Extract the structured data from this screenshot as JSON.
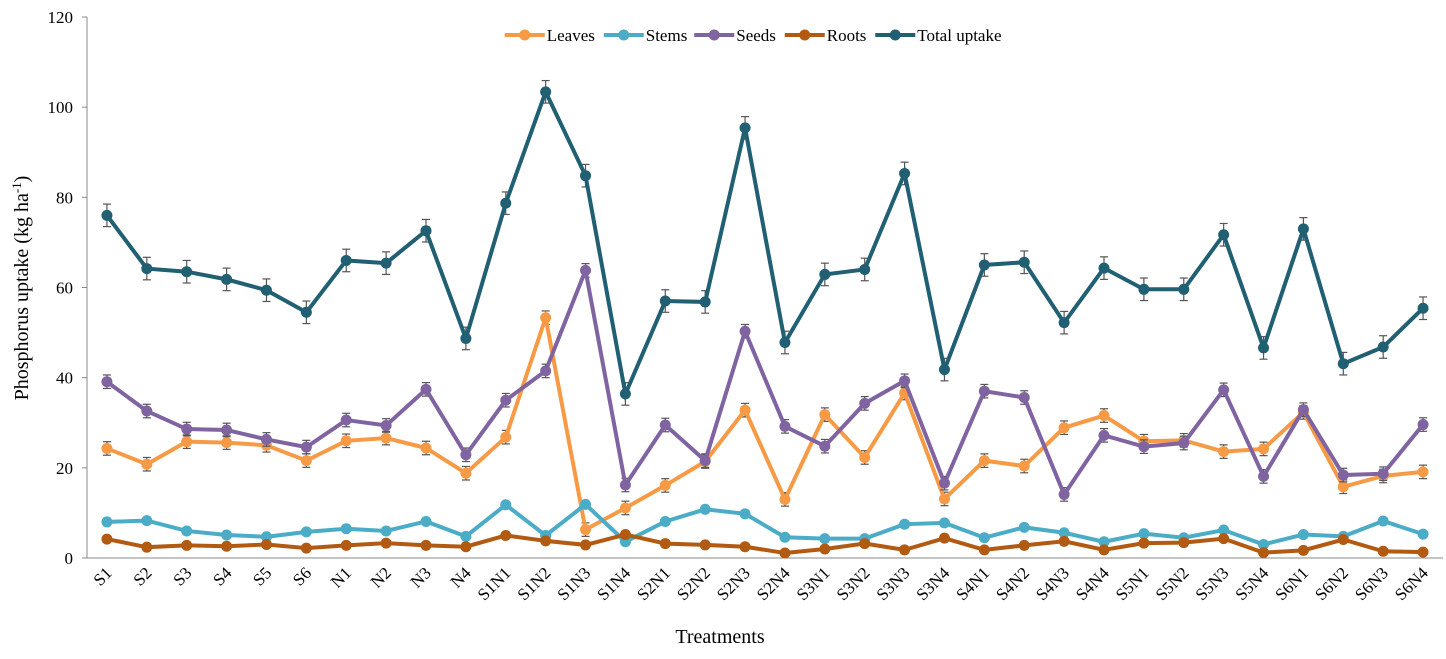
{
  "chart_data": {
    "type": "line",
    "xlabel": "Treatments",
    "ylabel": "Phosphorus uptake (kg ha",
    "ylabel_sup": "-1",
    "ylabel_end": ")",
    "categories": [
      "S1",
      "S2",
      "S3",
      "S4",
      "S5",
      "S6",
      "N1",
      "N2",
      "N3",
      "N4",
      "S1N1",
      "S1N2",
      "S1N3",
      "S1N4",
      "S2N1",
      "S2N2",
      "S2N3",
      "S2N4",
      "S3N1",
      "S3N2",
      "S3N3",
      "S3N4",
      "S4N1",
      "S4N2",
      "S4N3",
      "S4N4",
      "S5N1",
      "S5N2",
      "S5N3",
      "S5N4",
      "S6N1",
      "S6N2",
      "S6N3",
      "S6N4"
    ],
    "ylim": [
      0,
      120
    ],
    "yticks": [
      0,
      20,
      40,
      60,
      80,
      100,
      120
    ],
    "legend": "top",
    "series": [
      {
        "name": "Leaves",
        "color": "#f79a46",
        "values": [
          24.3,
          20.8,
          25.8,
          25.6,
          25,
          21.6,
          26,
          26.6,
          24.4,
          18.8,
          26.8,
          53.3,
          6.3,
          11.1,
          16.1,
          21.4,
          32.8,
          13,
          31.8,
          22.3,
          36.6,
          13.1,
          21.6,
          20.4,
          28.9,
          31.6,
          25.9,
          26.1,
          23.6,
          24.2,
          32.3,
          15.8,
          18.2,
          19.1
        ],
        "errors": [
          1.5,
          1.5,
          1.5,
          1.5,
          1.5,
          1.5,
          1.5,
          1.5,
          1.5,
          1.5,
          1.5,
          1.5,
          1.5,
          1.5,
          1.5,
          1.5,
          1.5,
          1.5,
          1.5,
          1.5,
          1.5,
          1.5,
          1.5,
          1.5,
          1.5,
          1.5,
          1.5,
          1.5,
          1.5,
          1.5,
          1.5,
          1.5,
          1.5,
          1.5
        ]
      },
      {
        "name": "Stems",
        "color": "#4aacc6",
        "values": [
          8,
          8.3,
          6,
          5.1,
          4.7,
          5.8,
          6.5,
          6,
          8.1,
          4.8,
          11.8,
          5,
          11.9,
          3.6,
          8.1,
          10.8,
          9.8,
          4.6,
          4.3,
          4.3,
          7.5,
          7.8,
          4.5,
          6.8,
          5.6,
          3.6,
          5.4,
          4.5,
          6.2,
          3,
          5.2,
          4.8,
          8.2,
          5.3
        ]
      },
      {
        "name": "Seeds",
        "color": "#8064a2",
        "values": [
          39.1,
          32.6,
          28.6,
          28.4,
          26.3,
          24.6,
          30.6,
          29.4,
          37.4,
          22.9,
          35,
          41.5,
          63.8,
          16.2,
          29.5,
          21.6,
          50.3,
          29.2,
          24.8,
          34.3,
          39.3,
          16.6,
          37,
          35.6,
          14.1,
          27.2,
          24.7,
          25.5,
          37.3,
          18.1,
          32.9,
          18.4,
          18.7,
          29.6
        ],
        "errors": [
          1.5,
          1.5,
          1.5,
          1.5,
          1.5,
          1.5,
          1.5,
          1.5,
          1.5,
          1.5,
          1.5,
          1.5,
          1.5,
          1.5,
          1.5,
          1.5,
          1.5,
          1.5,
          1.5,
          1.5,
          1.5,
          1.5,
          1.5,
          1.5,
          1.5,
          1.5,
          1.5,
          1.5,
          1.5,
          1.5,
          1.5,
          1.5,
          1.5,
          1.5
        ]
      },
      {
        "name": "Roots",
        "color": "#b35a12",
        "values": [
          4.2,
          2.4,
          2.8,
          2.6,
          3,
          2.2,
          2.8,
          3.3,
          2.8,
          2.5,
          5,
          3.8,
          2.9,
          5.2,
          3.2,
          2.9,
          2.5,
          1.1,
          2,
          3.2,
          1.8,
          4.4,
          1.8,
          2.8,
          3.7,
          1.8,
          3.3,
          3.4,
          4.3,
          1.2,
          1.7,
          4.1,
          1.5,
          1.3
        ]
      },
      {
        "name": "Total uptake",
        "color": "#215f73",
        "values": [
          76,
          64.2,
          63.5,
          61.8,
          59.4,
          54.5,
          66,
          65.4,
          72.6,
          48.7,
          78.7,
          103.4,
          84.8,
          36.4,
          57,
          56.8,
          95.4,
          47.8,
          62.9,
          64,
          85.3,
          41.8,
          65,
          65.6,
          52.2,
          64.3,
          59.6,
          59.6,
          71.7,
          46.6,
          73,
          43.1,
          46.8,
          55.4
        ],
        "errors": [
          2.5,
          2.5,
          2.5,
          2.5,
          2.5,
          2.5,
          2.5,
          2.5,
          2.5,
          2.5,
          2.5,
          2.5,
          2.5,
          2.5,
          2.5,
          2.5,
          2.5,
          2.5,
          2.5,
          2.5,
          2.5,
          2.5,
          2.5,
          2.5,
          2.5,
          2.5,
          2.5,
          2.5,
          2.5,
          2.5,
          2.5,
          2.5,
          2.5,
          2.5
        ]
      }
    ]
  }
}
